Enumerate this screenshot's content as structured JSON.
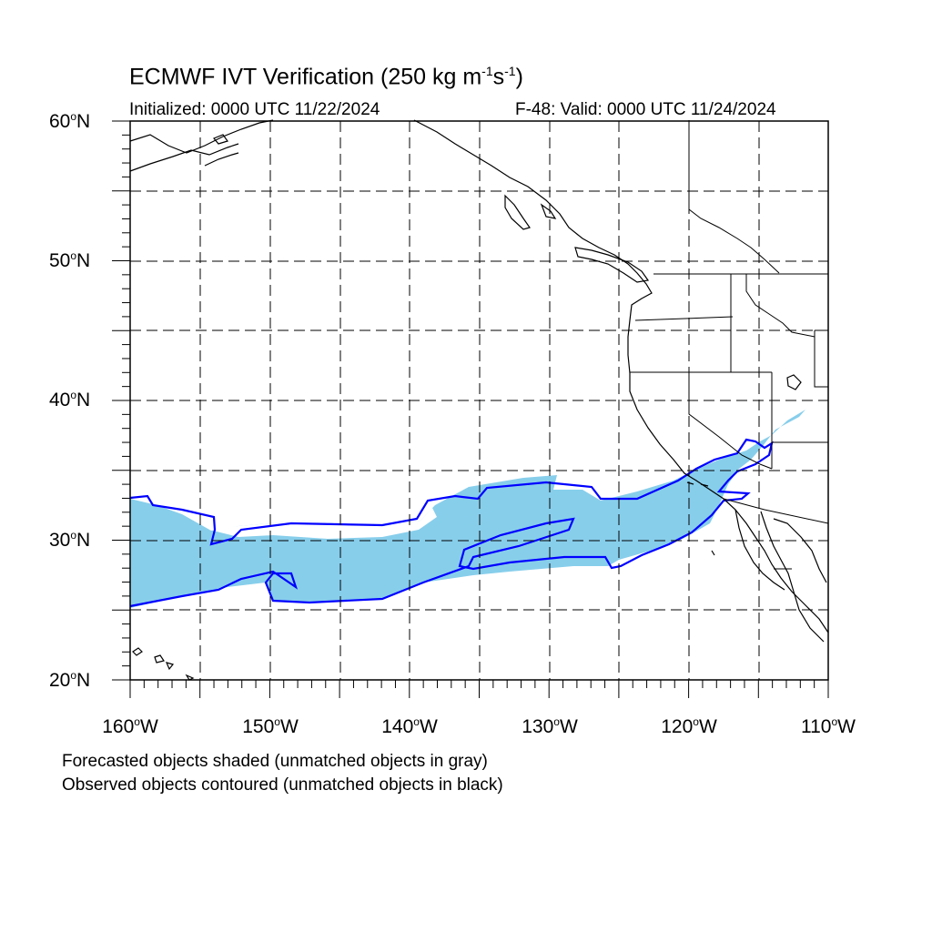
{
  "title": {
    "main": "ECMWF IVT Verification (250 kg m",
    "exp1": "-1",
    "mid": "s",
    "exp2": "-1",
    "end": ")"
  },
  "initialized": "Initialized: 0000 UTC 11/22/2024",
  "valid": "F-48: Valid: 0000 UTC 11/24/2024",
  "map": {
    "lat_labels": [
      {
        "num": "60",
        "hemi": "N"
      },
      {
        "num": "50",
        "hemi": "N"
      },
      {
        "num": "40",
        "hemi": "N"
      },
      {
        "num": "30",
        "hemi": "N"
      },
      {
        "num": "20",
        "hemi": "N"
      }
    ],
    "lon_labels": [
      {
        "num": "160",
        "hemi": "W"
      },
      {
        "num": "150",
        "hemi": "W"
      },
      {
        "num": "140",
        "hemi": "W"
      },
      {
        "num": "130",
        "hemi": "W"
      },
      {
        "num": "120",
        "hemi": "W"
      },
      {
        "num": "110",
        "hemi": "W"
      }
    ],
    "degree_symbol": "o",
    "lat_range": [
      20,
      60
    ],
    "lon_range": [
      -160,
      -110
    ],
    "grid_spacing_deg": 5,
    "forecast_object_color": "#87ceeb",
    "observed_contour_color": "#0000ff"
  },
  "legend": {
    "line1": "Forecasted objects shaded (unmatched objects in gray)",
    "line2": "Observed objects contoured (unmatched objects in black)"
  }
}
